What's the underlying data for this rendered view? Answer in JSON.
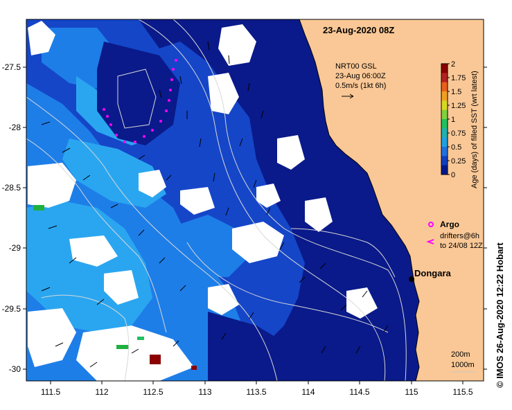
{
  "title": "23-Aug-2020 08Z",
  "current_info": {
    "line1": "NRT00 GSL",
    "line2": "23-Aug 06:00Z",
    "line3": "0.5m/s (1kt 6h)"
  },
  "colorbar": {
    "title": "Age (days) of filled SST (wrt latest)",
    "ticks": [
      "2",
      "1.75",
      "1.5",
      "1.25",
      "1",
      "0.75",
      "0.5",
      "0.25",
      "0"
    ],
    "colors": [
      "#8b0000",
      "#b22222",
      "#e8601c",
      "#f0a020",
      "#d8d820",
      "#80d040",
      "#20c060",
      "#20b0b0",
      "#20a0e0",
      "#2070e0",
      "#1040c0",
      "#001a8c"
    ]
  },
  "legend": {
    "argo_label": "Argo",
    "drifters_line1": "drifters@6h",
    "drifters_line2": "to 24/08 12Z",
    "argo_color": "#ff00ff"
  },
  "place": {
    "name": "Dongara"
  },
  "isobaths": {
    "line1": "200m",
    "line2": "1000m"
  },
  "credit": "©  IMOS 26-Aug-2020 12:22 Hobart",
  "axes": {
    "x_ticks": [
      "111.5",
      "112",
      "112.5",
      "113",
      "113.5",
      "114",
      "114.5",
      "115",
      "115.5"
    ],
    "y_ticks": [
      "-27.5",
      "-28",
      "-28.5",
      "-29",
      "-29.5",
      "-30"
    ]
  },
  "colors": {
    "land": "#fac896",
    "ocean_dark": "#0a1a8a",
    "ocean_mid": "#1546c8",
    "ocean_light": "#1e7ee8",
    "ocean_cyan": "#2aa6f0",
    "no_data": "#ffffff"
  }
}
